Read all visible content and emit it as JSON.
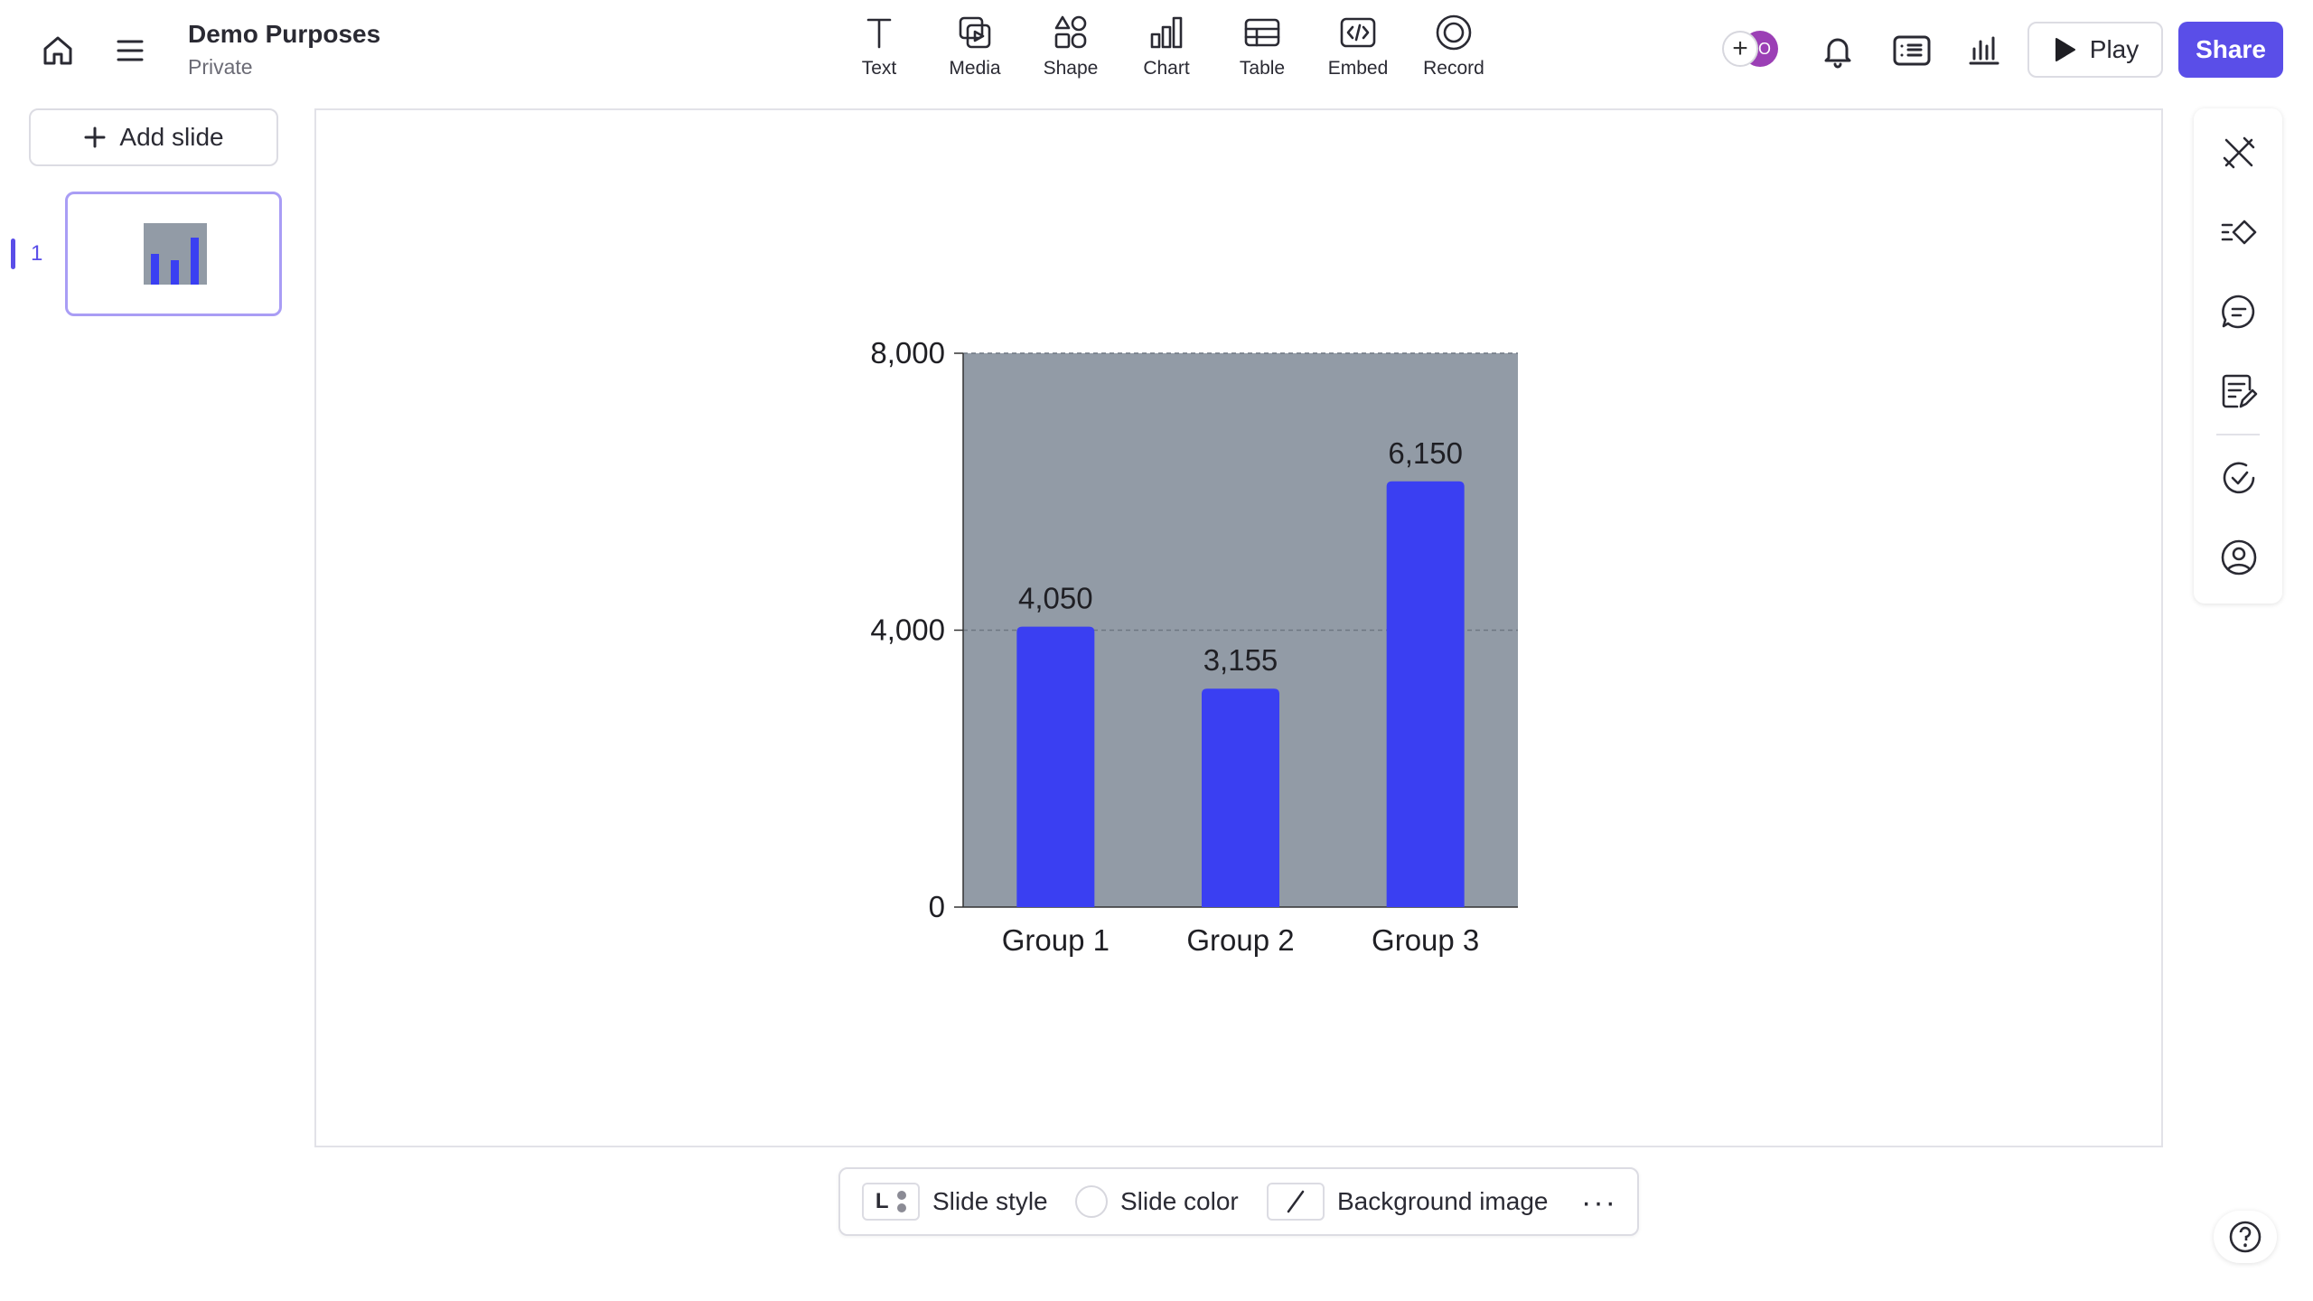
{
  "document": {
    "title": "Demo Purposes",
    "visibility": "Private"
  },
  "header": {
    "icons": [
      "home-icon",
      "menu-icon",
      "bell-icon",
      "presenter-icon",
      "analytics-icon"
    ],
    "tools": [
      {
        "label": "Text",
        "icon": "text-icon"
      },
      {
        "label": "Media",
        "icon": "media-icon"
      },
      {
        "label": "Shape",
        "icon": "shape-icon"
      },
      {
        "label": "Chart",
        "icon": "chart-icon"
      },
      {
        "label": "Table",
        "icon": "table-icon"
      },
      {
        "label": "Embed",
        "icon": "embed-icon"
      },
      {
        "label": "Record",
        "icon": "record-icon"
      }
    ],
    "avatar_initial": "O",
    "play_label": "Play",
    "share_label": "Share"
  },
  "sidebar": {
    "add_slide_label": "Add slide",
    "slides": [
      {
        "number": "1"
      }
    ]
  },
  "right_rail": {
    "icons": [
      "design-icon",
      "interactions-icon",
      "comments-icon",
      "notes-icon",
      "check-icon",
      "user-icon"
    ]
  },
  "bottom_toolbar": {
    "style_letter": "L",
    "slide_style_label": "Slide style",
    "slide_color_label": "Slide color",
    "background_image_label": "Background image",
    "more_label": "···"
  },
  "colors": {
    "accent": "#5a4ee8",
    "bar": "#3a3ff2",
    "plot_background": "#929ba6"
  },
  "chart_data": {
    "type": "bar",
    "categories": [
      "Group 1",
      "Group 2",
      "Group 3"
    ],
    "values": [
      4050,
      3155,
      6150
    ],
    "value_labels": [
      "4,050",
      "3,155",
      "6,150"
    ],
    "yticks": [
      0,
      4000,
      8000
    ],
    "ytick_labels": [
      "0",
      "4,000",
      "8,000"
    ],
    "ylim": [
      0,
      8000
    ],
    "grid": "dashed horizontal"
  }
}
